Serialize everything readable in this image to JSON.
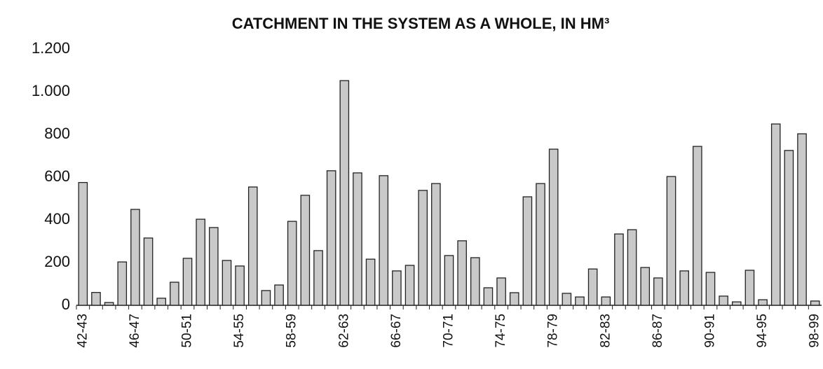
{
  "chart_data": {
    "type": "bar",
    "title": "CATCHMENT IN THE SYSTEM AS A WHOLE, IN HM³",
    "categories": [
      "42-43",
      null,
      null,
      null,
      "46-47",
      null,
      null,
      null,
      "50-51",
      null,
      null,
      null,
      "54-55",
      null,
      null,
      null,
      "58-59",
      null,
      null,
      null,
      "62-63",
      null,
      null,
      null,
      "66-67",
      null,
      null,
      null,
      "70-71",
      null,
      null,
      null,
      "74-75",
      null,
      null,
      null,
      "78-79",
      null,
      null,
      null,
      "82-83",
      null,
      null,
      null,
      "86-87",
      null,
      null,
      null,
      "90-91",
      null,
      null,
      null,
      "94-95",
      null,
      null,
      null,
      "98-99"
    ],
    "values": [
      575,
      60,
      13,
      203,
      449,
      315,
      33,
      108,
      220,
      403,
      364,
      210,
      184,
      554,
      69,
      95,
      393,
      515,
      256,
      630,
      1052,
      620,
      216,
      607,
      161,
      187,
      538,
      570,
      233,
      302,
      223,
      82,
      128,
      59,
      508,
      570,
      731,
      56,
      39,
      170,
      39,
      334,
      354,
      177,
      128,
      603,
      161,
      744,
      154,
      43,
      16,
      164,
      26,
      849,
      725,
      803,
      20
    ],
    "color": "#c9c9c9",
    "ylim": [
      0,
      1200
    ],
    "yticks": [
      0,
      200,
      400,
      600,
      800,
      {
        "value": 1000,
        "label": "1.000"
      },
      {
        "value": 1200,
        "label": "1.200"
      }
    ],
    "grid": false
  }
}
